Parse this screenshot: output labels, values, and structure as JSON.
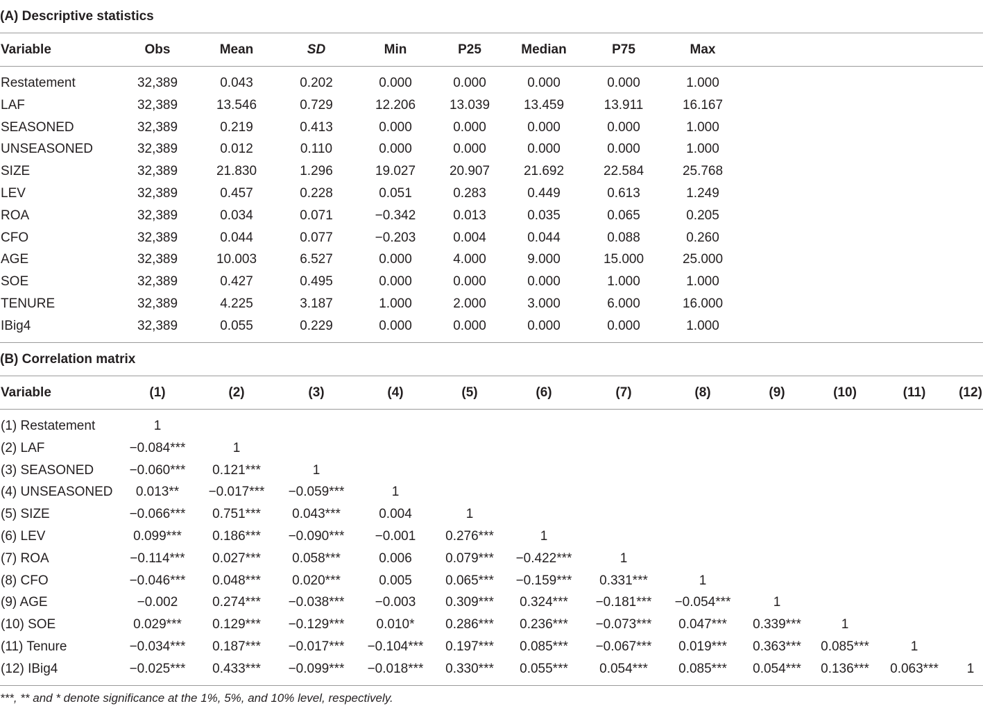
{
  "panel_a": {
    "title": "(A) Descriptive statistics",
    "headers": [
      "Variable",
      "Obs",
      "Mean",
      "SD",
      "Min",
      "P25",
      "Median",
      "P75",
      "Max"
    ],
    "rows": [
      [
        "Restatement",
        "32,389",
        "0.043",
        "0.202",
        "0.000",
        "0.000",
        "0.000",
        "0.000",
        "1.000"
      ],
      [
        "LAF",
        "32,389",
        "13.546",
        "0.729",
        "12.206",
        "13.039",
        "13.459",
        "13.911",
        "16.167"
      ],
      [
        "SEASONED",
        "32,389",
        "0.219",
        "0.413",
        "0.000",
        "0.000",
        "0.000",
        "0.000",
        "1.000"
      ],
      [
        "UNSEASONED",
        "32,389",
        "0.012",
        "0.110",
        "0.000",
        "0.000",
        "0.000",
        "0.000",
        "1.000"
      ],
      [
        "SIZE",
        "32,389",
        "21.830",
        "1.296",
        "19.027",
        "20.907",
        "21.692",
        "22.584",
        "25.768"
      ],
      [
        "LEV",
        "32,389",
        "0.457",
        "0.228",
        "0.051",
        "0.283",
        "0.449",
        "0.613",
        "1.249"
      ],
      [
        "ROA",
        "32,389",
        "0.034",
        "0.071",
        "−0.342",
        "0.013",
        "0.035",
        "0.065",
        "0.205"
      ],
      [
        "CFO",
        "32,389",
        "0.044",
        "0.077",
        "−0.203",
        "0.004",
        "0.044",
        "0.088",
        "0.260"
      ],
      [
        "AGE",
        "32,389",
        "10.003",
        "6.527",
        "0.000",
        "4.000",
        "9.000",
        "15.000",
        "25.000"
      ],
      [
        "SOE",
        "32,389",
        "0.427",
        "0.495",
        "0.000",
        "0.000",
        "0.000",
        "1.000",
        "1.000"
      ],
      [
        "TENURE",
        "32,389",
        "4.225",
        "3.187",
        "1.000",
        "2.000",
        "3.000",
        "6.000",
        "16.000"
      ],
      [
        "IBig4",
        "32,389",
        "0.055",
        "0.229",
        "0.000",
        "0.000",
        "0.000",
        "0.000",
        "1.000"
      ]
    ]
  },
  "panel_b": {
    "title": "(B) Correlation matrix",
    "headers": [
      "Variable",
      "(1)",
      "(2)",
      "(3)",
      "(4)",
      "(5)",
      "(6)",
      "(7)",
      "(8)",
      "(9)",
      "(10)",
      "(11)",
      "(12)"
    ],
    "rows": [
      [
        "(1) Restatement",
        "1"
      ],
      [
        "(2) LAF",
        "−0.084***",
        "1"
      ],
      [
        "(3) SEASONED",
        "−0.060***",
        "0.121***",
        "1"
      ],
      [
        "(4) UNSEASONED",
        "0.013**",
        "−0.017***",
        "−0.059***",
        "1"
      ],
      [
        "(5) SIZE",
        "−0.066***",
        "0.751***",
        "0.043***",
        "0.004",
        "1"
      ],
      [
        "(6) LEV",
        "0.099***",
        "0.186***",
        "−0.090***",
        "−0.001",
        "0.276***",
        "1"
      ],
      [
        "(7) ROA",
        "−0.114***",
        "0.027***",
        "0.058***",
        "0.006",
        "0.079***",
        "−0.422***",
        "1"
      ],
      [
        "(8) CFO",
        "−0.046***",
        "0.048***",
        "0.020***",
        "0.005",
        "0.065***",
        "−0.159***",
        "0.331***",
        "1"
      ],
      [
        "(9) AGE",
        "−0.002",
        "0.274***",
        "−0.038***",
        "−0.003",
        "0.309***",
        "0.324***",
        "−0.181***",
        "−0.054***",
        "1"
      ],
      [
        "(10) SOE",
        "0.029***",
        "0.129***",
        "−0.129***",
        "0.010*",
        "0.286***",
        "0.236***",
        "−0.073***",
        "0.047***",
        "0.339***",
        "1"
      ],
      [
        "(11) Tenure",
        "−0.034***",
        "0.187***",
        "−0.017***",
        "−0.104***",
        "0.197***",
        "0.085***",
        "−0.067***",
        "0.019***",
        "0.363***",
        "0.085***",
        "1"
      ],
      [
        "(12) IBig4",
        "−0.025***",
        "0.433***",
        "−0.099***",
        "−0.018***",
        "0.330***",
        "0.055***",
        "0.054***",
        "0.085***",
        "0.054***",
        "0.136***",
        "0.063***",
        "1"
      ]
    ]
  },
  "footnote": "***, ** and * denote significance at the 1%, 5%, and 10% level, respectively."
}
